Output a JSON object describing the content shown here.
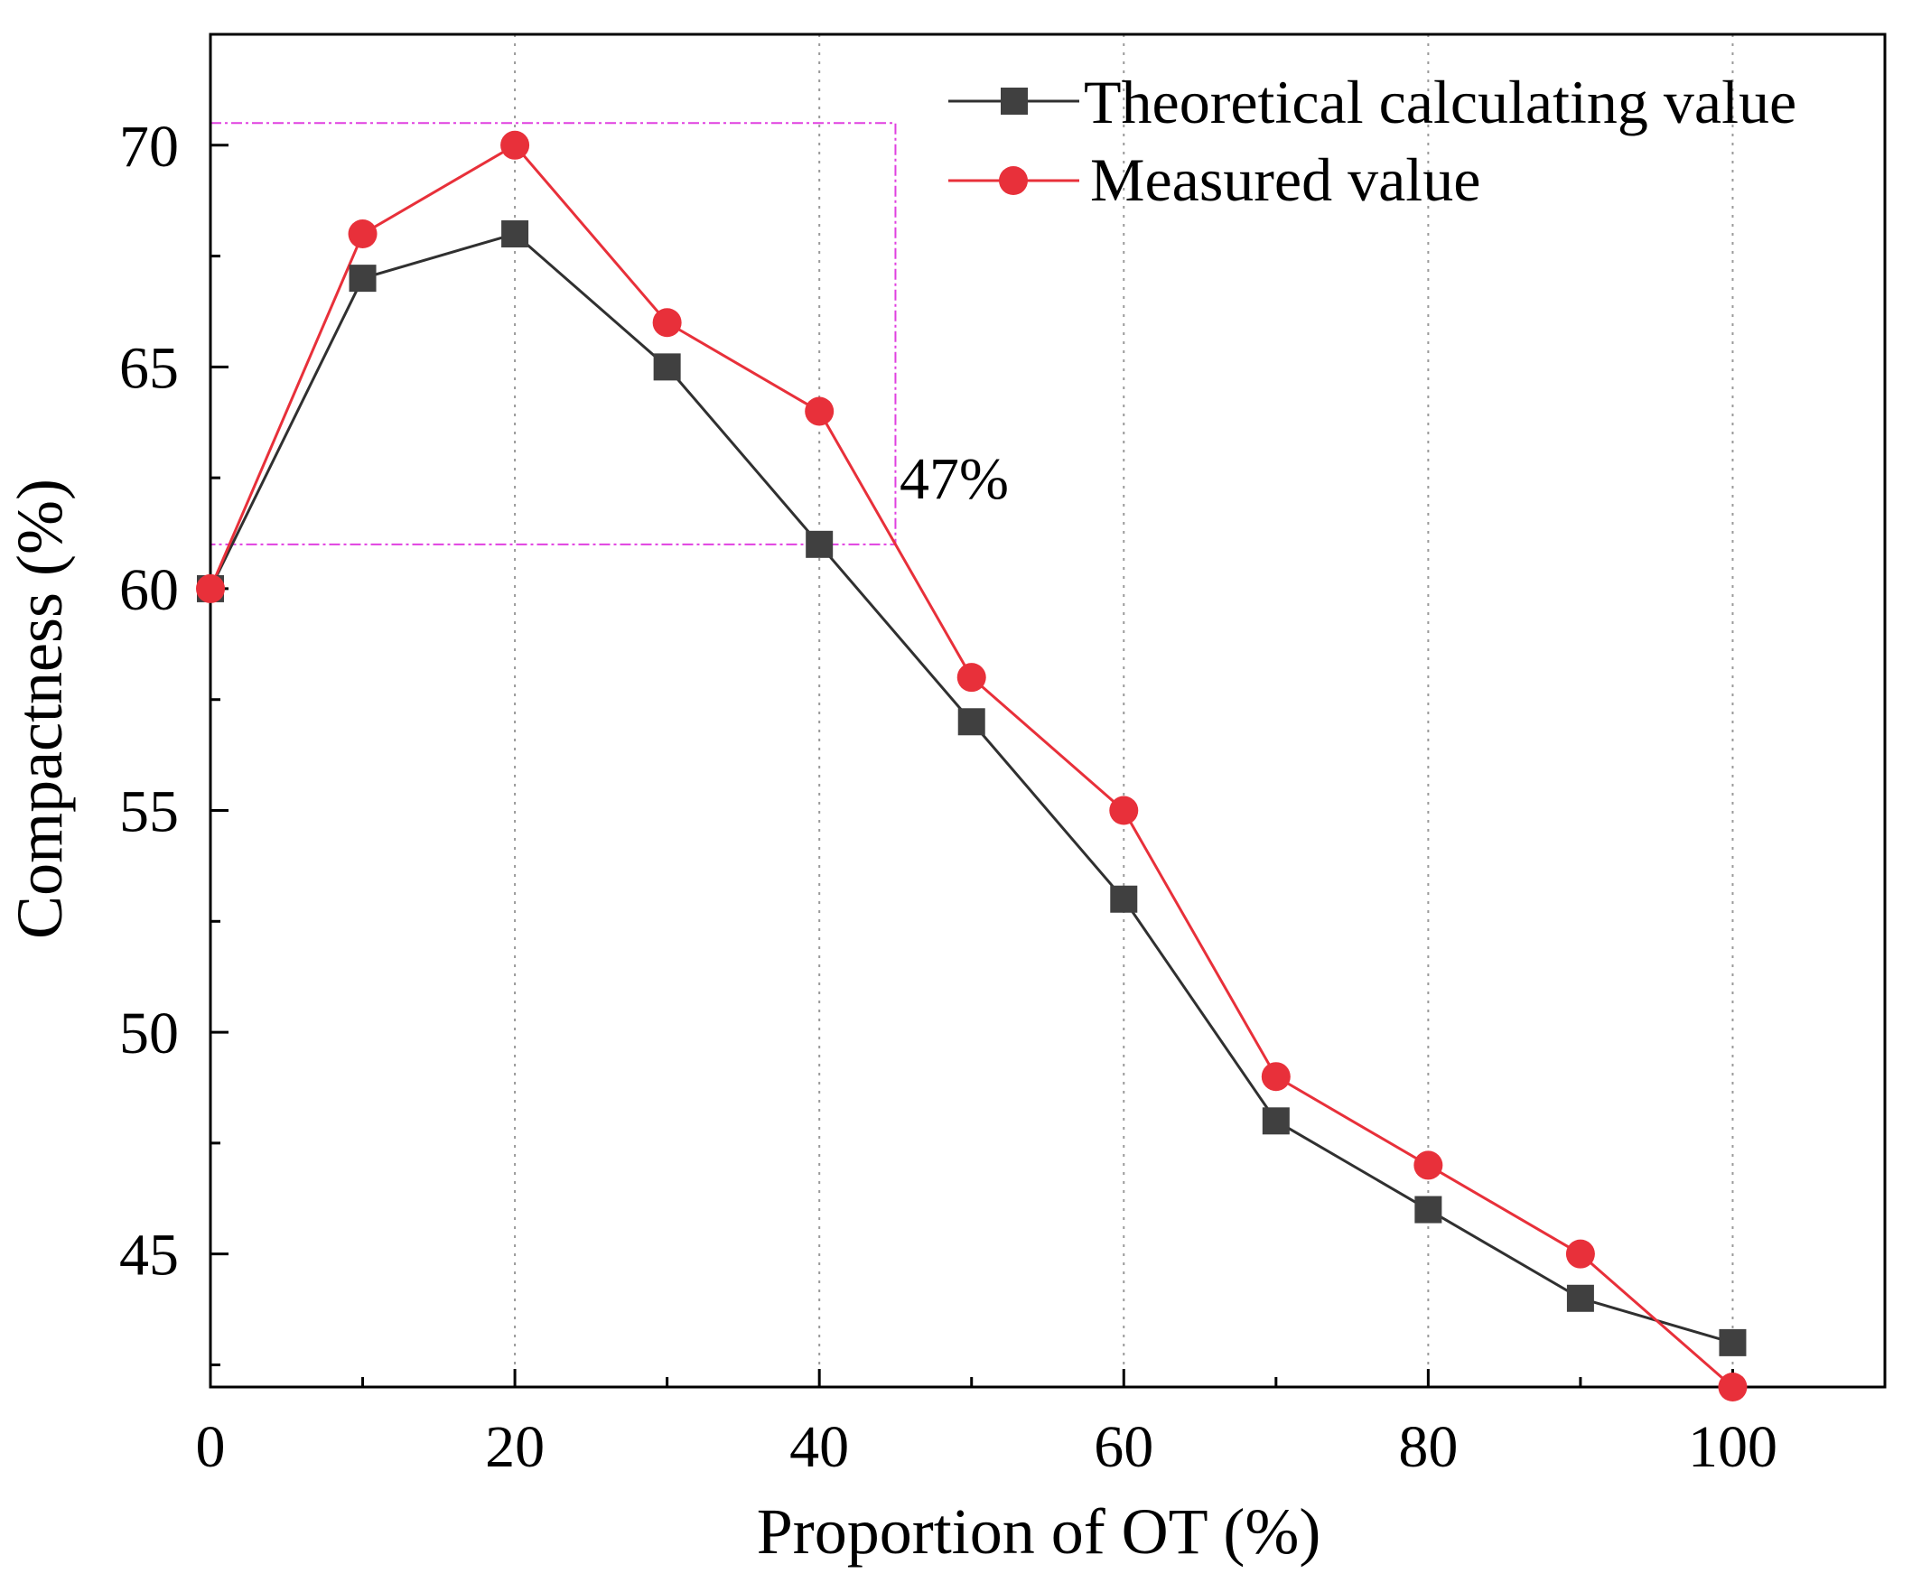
{
  "chart_data": {
    "type": "line",
    "title": "",
    "xlabel": "Proportion of OT (%)",
    "ylabel": "Compactness (%)",
    "xlim": [
      0,
      110
    ],
    "ylim": [
      42,
      72.5
    ],
    "xticks": [
      0,
      20,
      40,
      60,
      80,
      100
    ],
    "yticks": [
      45,
      50,
      55,
      60,
      65,
      70
    ],
    "vertical_gridlines": [
      20,
      40,
      60,
      80,
      100
    ],
    "x": [
      0,
      10,
      20,
      30,
      40,
      50,
      60,
      70,
      80,
      90,
      100
    ],
    "series": [
      {
        "name": "Theoretical calculating value",
        "marker": "square",
        "color": "#404040",
        "line_color": "#303030",
        "values": [
          60,
          67,
          68,
          65,
          61,
          57,
          53,
          48,
          46,
          44,
          43
        ]
      },
      {
        "name": "Measured value",
        "marker": "circle",
        "color": "#e8303a",
        "line_color": "#e8303a",
        "values": [
          60,
          68,
          70,
          66,
          64,
          58,
          55,
          49,
          47,
          45,
          42
        ]
      }
    ],
    "annotation": {
      "text": "47%",
      "box_x": [
        0,
        45
      ],
      "box_y": [
        61,
        70.5
      ],
      "color": "#e040e0"
    },
    "legend_position": "top-right",
    "grid": "vertical dotted"
  }
}
